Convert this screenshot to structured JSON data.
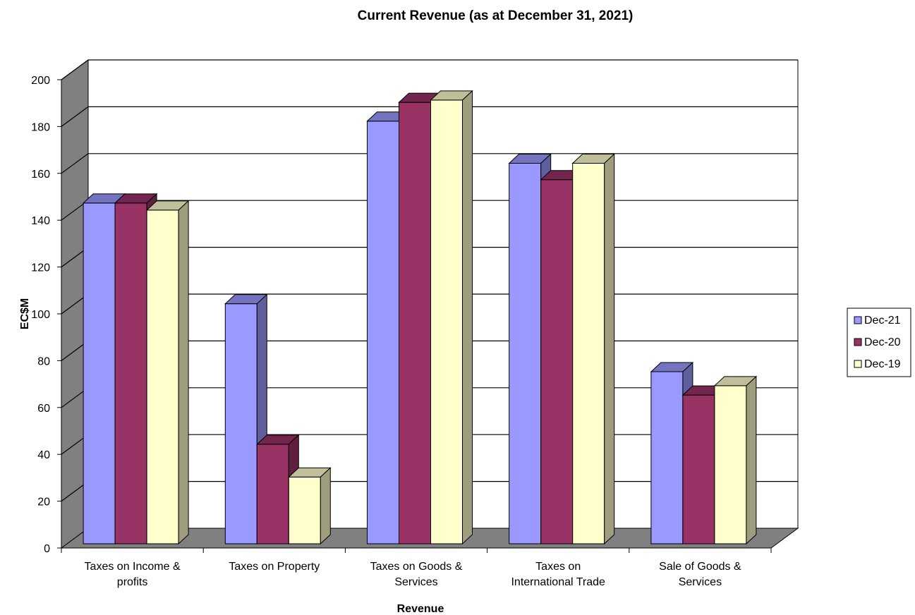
{
  "chart_data": {
    "type": "bar",
    "title": "Current Revenue (as at December 31, 2021)",
    "xlabel": "Revenue",
    "ylabel": "EC$M",
    "ylim": [
      0,
      200
    ],
    "yticks": [
      0,
      20,
      40,
      60,
      80,
      100,
      120,
      140,
      160,
      180,
      200
    ],
    "grid": true,
    "legend_position": "right",
    "categories": [
      [
        "Taxes on Income &",
        "profits"
      ],
      [
        "Taxes on Property"
      ],
      [
        "Taxes on Goods &",
        "Services"
      ],
      [
        "Taxes on",
        "International Trade"
      ],
      [
        "Sale of Goods &",
        "Services"
      ]
    ],
    "series": [
      {
        "name": "Dec-21",
        "color": "#9999FF",
        "values": [
          144,
          101,
          179,
          161,
          72
        ]
      },
      {
        "name": "Dec-20",
        "color": "#993366",
        "values": [
          144,
          41,
          187,
          154,
          62
        ]
      },
      {
        "name": "Dec-19",
        "color": "#FFFFCC",
        "values": [
          141,
          27,
          188,
          161,
          66
        ]
      }
    ]
  }
}
